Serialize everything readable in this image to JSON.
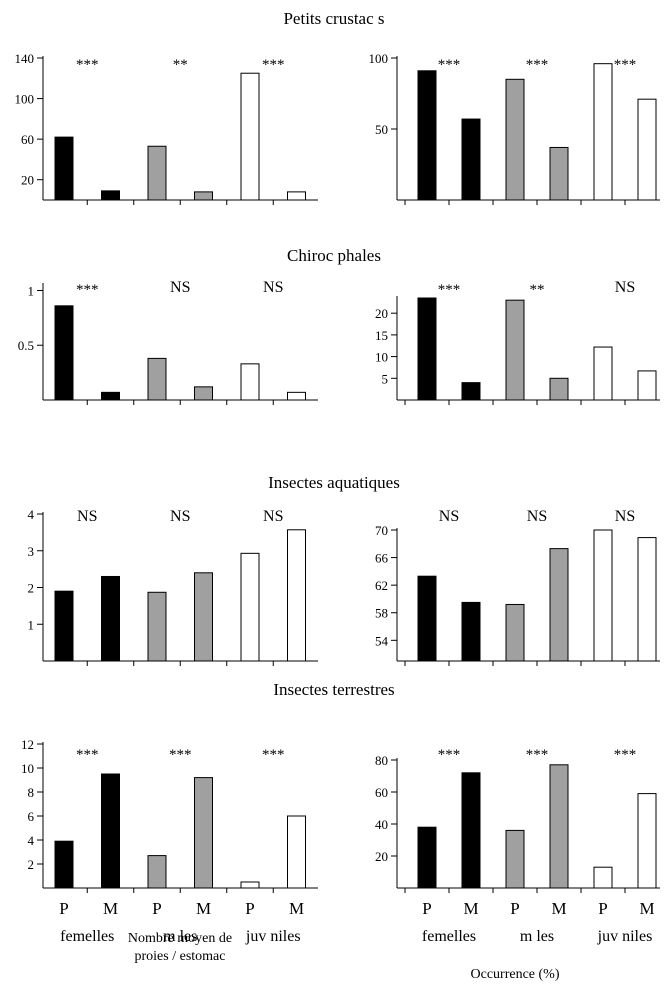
{
  "figure": {
    "x_caption_left": "Nombre moyen de",
    "x_caption_left_line2": "proies / estomac",
    "x_caption_right": "Occurrence (%)",
    "group_labels": [
      "femelles",
      "m les",
      "juv niles"
    ],
    "bar_labels": [
      "P",
      "M",
      "P",
      "M",
      "P",
      "M"
    ],
    "colors": {
      "femelles": "#000000",
      "males": "#a0a0a0",
      "juveniles": "#ffffff",
      "stroke": "#000000"
    }
  },
  "panels": [
    {
      "title": "Petits crustac s"
    },
    {
      "title": "Chiroc phales"
    },
    {
      "title": "Insectes aquatiques"
    },
    {
      "title": "Insectes terrestres"
    }
  ],
  "chart_data": [
    {
      "type": "bar",
      "row": 0,
      "side": "left",
      "categories": [
        "P",
        "M",
        "P",
        "M",
        "P",
        "M"
      ],
      "groups": [
        "femelles",
        "femelles",
        "m les",
        "m les",
        "juv niles",
        "juv niles"
      ],
      "values": [
        62,
        9,
        53,
        8,
        125,
        8
      ],
      "ylim": [
        0,
        140
      ],
      "yticks": [
        20,
        60,
        100,
        140
      ],
      "significance": [
        "***",
        "**",
        "***"
      ]
    },
    {
      "type": "bar",
      "row": 0,
      "side": "right",
      "categories": [
        "P",
        "M",
        "P",
        "M",
        "P",
        "M"
      ],
      "groups": [
        "femelles",
        "femelles",
        "m les",
        "m les",
        "juv niles",
        "juv niles"
      ],
      "values": [
        91,
        57,
        85,
        37,
        96,
        71
      ],
      "ylim": [
        0,
        100
      ],
      "yticks": [
        50,
        100
      ],
      "significance": [
        "***",
        "***",
        "***"
      ]
    },
    {
      "type": "bar",
      "row": 1,
      "side": "left",
      "categories": [
        "P",
        "M",
        "P",
        "M",
        "P",
        "M"
      ],
      "groups": [
        "femelles",
        "femelles",
        "m les",
        "m les",
        "juv niles",
        "juv niles"
      ],
      "values": [
        0.86,
        0.07,
        0.38,
        0.12,
        0.33,
        0.07
      ],
      "ylim": [
        0,
        1.05
      ],
      "yticks": [
        0.5,
        1
      ],
      "ytick_labels": [
        "0.5",
        "1"
      ],
      "significance": [
        "***",
        "NS",
        "NS"
      ]
    },
    {
      "type": "bar",
      "row": 1,
      "side": "right",
      "categories": [
        "P",
        "M",
        "P",
        "M",
        "P",
        "M"
      ],
      "groups": [
        "femelles",
        "femelles",
        "m les",
        "m les",
        "juv niles",
        "juv niles"
      ],
      "values": [
        23.5,
        4,
        23,
        5,
        12.2,
        6.7
      ],
      "ylim": [
        0,
        23.5
      ],
      "yticks": [
        5,
        10,
        15,
        20
      ],
      "significance": [
        "***",
        "**",
        "NS"
      ]
    },
    {
      "type": "bar",
      "row": 2,
      "side": "left",
      "categories": [
        "P",
        "M",
        "P",
        "M",
        "P",
        "M"
      ],
      "groups": [
        "femelles",
        "femelles",
        "m les",
        "m les",
        "juv niles",
        "juv niles"
      ],
      "values": [
        1.9,
        2.3,
        1.87,
        2.4,
        2.93,
        3.57
      ],
      "ylim": [
        0,
        4
      ],
      "yticks": [
        1,
        2,
        3,
        4
      ],
      "significance": [
        "NS",
        "NS",
        "NS"
      ]
    },
    {
      "type": "bar",
      "row": 2,
      "side": "right",
      "categories": [
        "P",
        "M",
        "P",
        "M",
        "P",
        "M"
      ],
      "groups": [
        "femelles",
        "femelles",
        "m les",
        "m les",
        "juv niles",
        "juv niles"
      ],
      "values": [
        63.3,
        59.5,
        59.2,
        67.3,
        70,
        68.9
      ],
      "ylim": [
        51,
        70
      ],
      "yticks": [
        54,
        58,
        62,
        66,
        70
      ],
      "significance": [
        "NS",
        "NS",
        "NS"
      ]
    },
    {
      "type": "bar",
      "row": 3,
      "side": "left",
      "categories": [
        "P",
        "M",
        "P",
        "M",
        "P",
        "M"
      ],
      "groups": [
        "femelles",
        "femelles",
        "m les",
        "m les",
        "juv niles",
        "juv niles"
      ],
      "values": [
        3.9,
        9.5,
        2.7,
        9.2,
        0.5,
        6
      ],
      "ylim": [
        0,
        12
      ],
      "yticks": [
        2,
        4,
        6,
        8,
        10,
        12
      ],
      "significance": [
        "***",
        "***",
        "***"
      ]
    },
    {
      "type": "bar",
      "row": 3,
      "side": "right",
      "categories": [
        "P",
        "M",
        "P",
        "M",
        "P",
        "M"
      ],
      "groups": [
        "femelles",
        "femelles",
        "m les",
        "m les",
        "juv niles",
        "juv niles"
      ],
      "values": [
        38,
        72,
        36,
        77,
        13,
        59
      ],
      "ylim": [
        0,
        80
      ],
      "yticks": [
        20,
        40,
        60,
        80
      ],
      "significance": [
        "***",
        "***",
        "***"
      ]
    }
  ]
}
